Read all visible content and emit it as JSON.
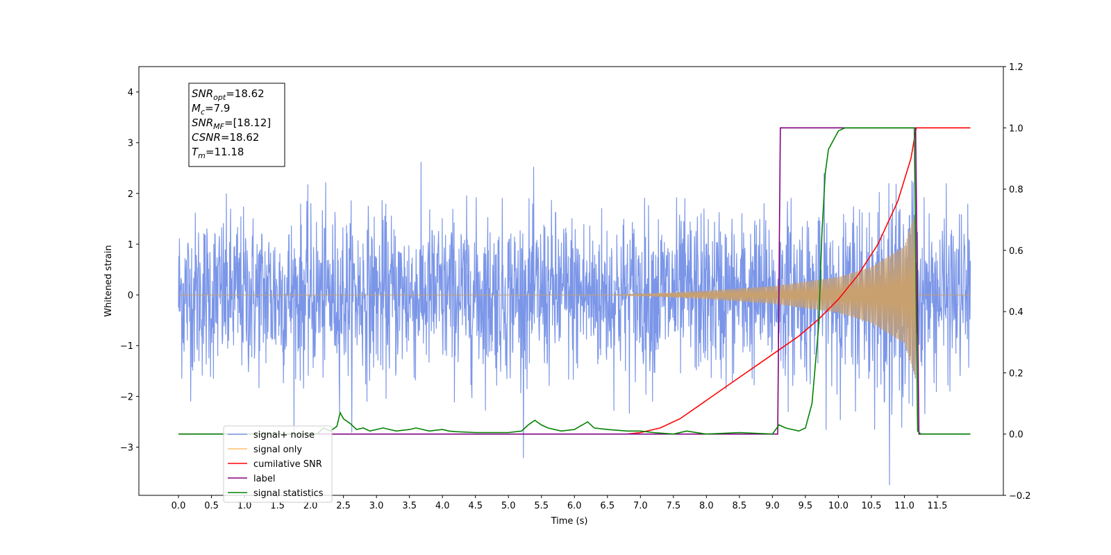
{
  "chart_data": {
    "type": "line",
    "xlabel": "Time (s)",
    "ylabel": "Whitened strain",
    "x_range": [
      -0.6,
      12.5
    ],
    "y_left_range": [
      -3.95,
      4.5
    ],
    "y_right_range": [
      -0.2,
      1.2
    ],
    "x_ticks": [
      "0.0",
      "0.5",
      "1.0",
      "1.5",
      "2.0",
      "2.5",
      "3.0",
      "3.5",
      "4.0",
      "4.5",
      "5.0",
      "5.5",
      "6.0",
      "6.5",
      "7.0",
      "7.5",
      "8.0",
      "8.5",
      "9.0",
      "9.5",
      "10.0",
      "10.5",
      "11.0",
      "11.5"
    ],
    "y_left_ticks": [
      "4",
      "3",
      "2",
      "1",
      "0",
      "−1",
      "−2",
      "−3"
    ],
    "y_right_ticks": [
      "1.2",
      "1.0",
      "0.8",
      "0.6",
      "0.4",
      "0.2",
      "0.0",
      "−0.2"
    ],
    "annotation_lines": [
      {
        "name": "SNR",
        "sub": "opt",
        "value": "=18.62"
      },
      {
        "name": "M",
        "sub": "c",
        "value": "=7.9"
      },
      {
        "name": "SNR",
        "sub": "MF",
        "value": "=[18.12]"
      },
      {
        "name": "CSNR",
        "sub": "",
        "value": "=18.62"
      },
      {
        "name": "T",
        "sub": "m",
        "value": "=11.18"
      }
    ],
    "legend": [
      {
        "label": "signal+ noise",
        "color": "#7b96e8"
      },
      {
        "label": "signal only",
        "color": "#fcc16a"
      },
      {
        "label": "cumilative SNR",
        "color": "#ff0000"
      },
      {
        "label": "label",
        "color": "#800080"
      },
      {
        "label": "signal statistics",
        "color": "#008000"
      }
    ],
    "legend_placement": "lower-left",
    "series": [
      {
        "name": "signal+ noise",
        "axis": "left",
        "color": "#7b96e8",
        "t_start": 0.0,
        "t_end": 12.0,
        "noise_sigma": 0.8
      },
      {
        "name": "signal only",
        "axis": "left",
        "color": "#c8a070",
        "t_start": 0.0,
        "t_end": 12.0,
        "envelope": [
          [
            0,
            0
          ],
          [
            6.5,
            0.0
          ],
          [
            7.0,
            0.02
          ],
          [
            8.0,
            0.08
          ],
          [
            9.0,
            0.17
          ],
          [
            10.0,
            0.35
          ],
          [
            10.5,
            0.55
          ],
          [
            11.0,
            0.95
          ],
          [
            11.17,
            1.65
          ],
          [
            11.18,
            0
          ]
        ]
      },
      {
        "name": "cumilative SNR",
        "axis": "right",
        "color": "#ff0000",
        "x": [
          6.8,
          7.0,
          7.3,
          7.6,
          7.9,
          8.2,
          8.5,
          8.8,
          9.1,
          9.4,
          9.7,
          10.0,
          10.3,
          10.6,
          10.9,
          11.1,
          11.18,
          11.19,
          11.3,
          11.6,
          12.0
        ],
        "y": [
          0.0,
          0.005,
          0.02,
          0.05,
          0.095,
          0.14,
          0.185,
          0.23,
          0.275,
          0.32,
          0.375,
          0.44,
          0.52,
          0.62,
          0.76,
          0.9,
          1.0,
          1.0,
          1.0,
          1.0,
          1.0
        ]
      },
      {
        "name": "label",
        "axis": "right",
        "color": "#800080",
        "x": [
          0.0,
          9.08,
          9.12,
          11.17,
          11.22,
          12.0
        ],
        "y": [
          0.0,
          0.0,
          1.0,
          1.0,
          0.0,
          0.0
        ]
      },
      {
        "name": "signal statistics",
        "axis": "right",
        "color": "#008000",
        "x": [
          0.0,
          2.1,
          2.2,
          2.3,
          2.4,
          2.45,
          2.5,
          2.6,
          2.7,
          2.8,
          2.9,
          3.0,
          3.1,
          3.3,
          3.5,
          3.6,
          3.8,
          4.0,
          4.1,
          4.2,
          4.5,
          5.0,
          5.2,
          5.3,
          5.4,
          5.5,
          5.6,
          5.8,
          6.0,
          6.2,
          6.3,
          6.5,
          6.8,
          7.0,
          7.2,
          7.5,
          7.7,
          8.0,
          8.5,
          9.0,
          9.1,
          9.2,
          9.3,
          9.4,
          9.5,
          9.6,
          9.7,
          9.75,
          9.8,
          9.85,
          9.9,
          10.0,
          10.1,
          10.5,
          11.0,
          11.15,
          11.2,
          11.25,
          12.0
        ],
        "y": [
          0.0,
          0.0,
          0.02,
          0.01,
          0.025,
          0.07,
          0.05,
          0.035,
          0.015,
          0.02,
          0.01,
          0.015,
          0.02,
          0.01,
          0.015,
          0.02,
          0.01,
          0.015,
          0.01,
          0.008,
          0.005,
          0.005,
          0.01,
          0.03,
          0.045,
          0.03,
          0.02,
          0.01,
          0.015,
          0.04,
          0.02,
          0.015,
          0.01,
          0.01,
          0.005,
          0.0,
          0.01,
          0.0,
          0.005,
          0.0,
          0.03,
          0.02,
          0.015,
          0.01,
          0.02,
          0.1,
          0.35,
          0.65,
          0.85,
          0.93,
          0.95,
          0.99,
          1.0,
          1.0,
          1.0,
          1.0,
          0.01,
          0.0,
          0.0
        ]
      }
    ]
  }
}
